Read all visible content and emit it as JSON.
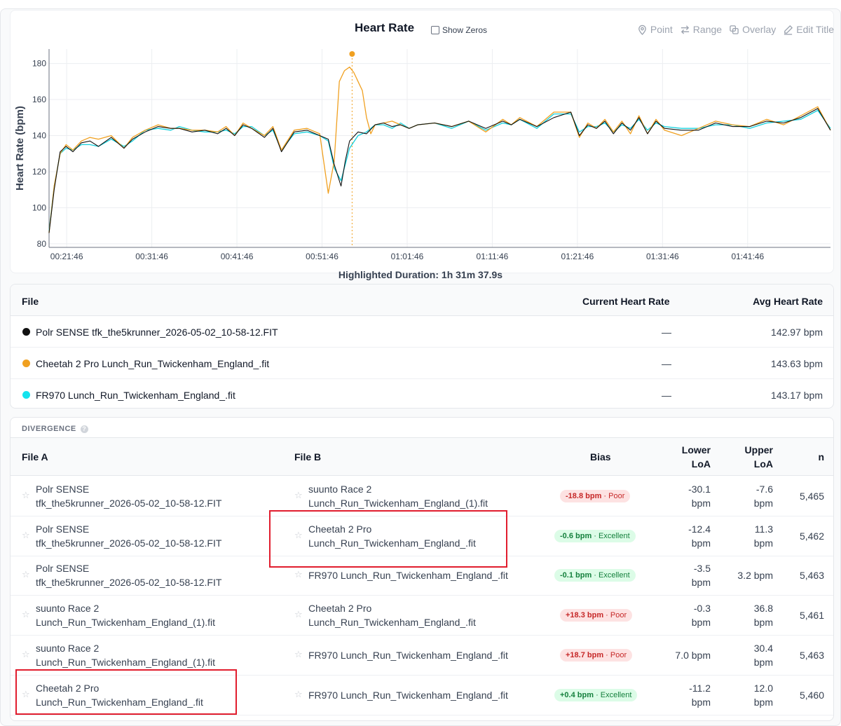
{
  "chart": {
    "title": "Heart Rate",
    "show_zeros_label": "Show Zeros",
    "toolbar": [
      {
        "label": "Point",
        "icon": "pin-icon"
      },
      {
        "label": "Range",
        "icon": "arrows-icon"
      },
      {
        "label": "Overlay",
        "icon": "overlay-icon"
      },
      {
        "label": "Edit Title",
        "icon": "edit-icon"
      }
    ],
    "highlighted_duration": "Highlighted Duration: 1h 31m 37.9s"
  },
  "chart_data": {
    "type": "line",
    "ylabel": "Heart Rate (bpm)",
    "xlabel": "",
    "ylim": [
      78,
      188
    ],
    "yticks": [
      80,
      100,
      120,
      140,
      160,
      180
    ],
    "x_tick_labels": [
      "00:21:46",
      "00:31:46",
      "00:41:46",
      "00:51:46",
      "01:01:46",
      "01:11:46",
      "01:21:46",
      "01:31:46",
      "01:41:46"
    ],
    "x_tick_minutes": [
      21.77,
      31.77,
      41.77,
      51.77,
      61.77,
      71.77,
      81.77,
      91.77,
      101.77
    ],
    "xlim_minutes": [
      19.7,
      111.5
    ],
    "cursor_minute": 55.3,
    "grid": true,
    "series": [
      {
        "name": "Polr SENSE",
        "color": "#111111",
        "x": [
          19.7,
          20.3,
          21,
          21.7,
          22.5,
          23.5,
          24.5,
          25.5,
          27,
          28.5,
          29.5,
          31,
          32.5,
          34,
          35,
          36.5,
          38,
          39.5,
          40.5,
          41.5,
          42.5,
          43.5,
          45,
          46,
          47,
          48.5,
          50,
          51.5,
          52.5,
          53.2,
          54,
          54.5,
          55,
          56,
          57,
          58,
          59,
          60,
          61,
          62,
          63,
          65,
          67,
          69,
          71,
          73,
          74,
          75,
          77,
          79,
          81,
          82,
          83,
          84,
          85,
          86,
          87,
          88,
          89,
          90,
          91,
          92,
          94,
          96,
          98,
          100,
          102,
          104,
          106,
          108,
          110,
          111.5
        ],
        "y": [
          86,
          110,
          131,
          134,
          131,
          136,
          137,
          134,
          139,
          133,
          138,
          142,
          145,
          144,
          144,
          142,
          143,
          141,
          144,
          140,
          146,
          144,
          139,
          144,
          131,
          142,
          143,
          140,
          138,
          124,
          112,
          126,
          137,
          142,
          141,
          146,
          147,
          145,
          146,
          144,
          146,
          147,
          145,
          148,
          144,
          148,
          146,
          149,
          145,
          150,
          153,
          140,
          146,
          144,
          148,
          141,
          147,
          143,
          150,
          141,
          148,
          144,
          143,
          143,
          147,
          145,
          145,
          148,
          147,
          150,
          155,
          143
        ]
      },
      {
        "name": "Cheetah 2 Pro",
        "color": "#f0a020",
        "x": [
          19.7,
          20.3,
          21,
          21.7,
          22.5,
          23.5,
          24.5,
          25.5,
          27,
          28.5,
          29.5,
          31,
          32.5,
          34,
          35,
          36.5,
          38,
          39.5,
          40.5,
          41.5,
          42.5,
          43.5,
          45,
          46,
          47,
          48.5,
          50,
          51.5,
          52.5,
          53.2,
          53.8,
          54.4,
          55,
          55.5,
          56,
          56.5,
          57,
          57.5,
          58,
          59,
          60,
          61,
          62,
          63,
          65,
          67,
          69,
          71,
          73,
          74,
          75,
          77,
          79,
          81,
          82,
          83,
          84,
          85,
          86,
          87,
          88,
          89,
          90,
          91,
          92,
          94,
          96,
          98,
          100,
          102,
          104,
          106,
          108,
          110,
          111.5
        ],
        "y": [
          86,
          112,
          130,
          135,
          132,
          137,
          139,
          138,
          140,
          133,
          139,
          143,
          146,
          144,
          144,
          143,
          143,
          142,
          145,
          140,
          147,
          144,
          140,
          145,
          132,
          143,
          144,
          141,
          108,
          126,
          170,
          176,
          178,
          175,
          170,
          165,
          150,
          141,
          146,
          147,
          148,
          146,
          144,
          146,
          147,
          145,
          148,
          142,
          149,
          146,
          150,
          145,
          153,
          153,
          139,
          147,
          144,
          149,
          142,
          148,
          141,
          151,
          141,
          149,
          143,
          140,
          144,
          148,
          146,
          145,
          149,
          146,
          151,
          156,
          143
        ]
      },
      {
        "name": "FR970",
        "color": "#15d0dd",
        "x": [
          19.7,
          20.3,
          21,
          21.7,
          22.5,
          23.5,
          24.5,
          25.5,
          27,
          28.5,
          29.5,
          31,
          32.5,
          34,
          35,
          36.5,
          38,
          39.5,
          40.5,
          41.5,
          42.5,
          43.5,
          45,
          46,
          47,
          48.5,
          50,
          51.5,
          52.5,
          53.2,
          54,
          55,
          56,
          57,
          58,
          59,
          60,
          61,
          62,
          63,
          65,
          67,
          69,
          71,
          73,
          74,
          75,
          77,
          79,
          81,
          82,
          83,
          84,
          85,
          86,
          87,
          88,
          89,
          90,
          91,
          92,
          94,
          96,
          98,
          100,
          102,
          104,
          106,
          108,
          110,
          111.5
        ],
        "y": [
          87,
          112,
          130,
          133,
          132,
          135,
          135,
          134,
          138,
          134,
          137,
          143,
          144,
          143,
          145,
          143,
          142,
          142,
          143,
          141,
          145,
          145,
          140,
          143,
          132,
          141,
          142,
          140,
          137,
          122,
          115,
          133,
          140,
          142,
          146,
          146,
          144,
          147,
          144,
          146,
          147,
          144,
          148,
          143,
          147,
          146,
          149,
          144,
          152,
          152,
          142,
          145,
          145,
          147,
          142,
          146,
          144,
          149,
          143,
          147,
          145,
          144,
          144,
          146,
          146,
          144,
          147,
          148,
          149,
          154,
          144
        ]
      }
    ]
  },
  "files": {
    "headers": {
      "file": "File",
      "current": "Current Heart Rate",
      "avg": "Avg Heart Rate"
    },
    "rows": [
      {
        "color": "#111111",
        "name": "Polr SENSE tfk_the5krunner_2026-05-02_10-58-12.FIT",
        "current": "—",
        "avg": "142.97 bpm"
      },
      {
        "color": "#f0a020",
        "name": "Cheetah 2 Pro Lunch_Run_Twickenham_England_.fit",
        "current": "—",
        "avg": "143.63 bpm"
      },
      {
        "color": "#15e3ee",
        "name": "FR970 Lunch_Run_Twickenham_England_.fit",
        "current": "—",
        "avg": "143.17 bpm"
      }
    ]
  },
  "divergence": {
    "label": "DIVERGENCE",
    "headers": {
      "a": "File A",
      "b": "File B",
      "bias": "Bias",
      "lower1": "Lower",
      "lower2": "LoA",
      "upper1": "Upper",
      "upper2": "LoA",
      "n": "n"
    },
    "rows": [
      {
        "a1": "Polr SENSE",
        "a2": "tfk_the5krunner_2026-05-02_10-58-12.FIT",
        "b1": "suunto Race 2",
        "b2": "Lunch_Run_Twickenham_England_(1).fit",
        "bias": "-18.8 bpm",
        "quality": "· Poor",
        "kind": "poor",
        "lo1": "-30.1",
        "lo2": "bpm",
        "up1": "-7.6",
        "up2": "bpm",
        "n": "5,465"
      },
      {
        "a1": "Polr SENSE",
        "a2": "tfk_the5krunner_2026-05-02_10-58-12.FIT",
        "b1": "Cheetah 2 Pro",
        "b2": "Lunch_Run_Twickenham_England_.fit",
        "bias": "-0.6 bpm",
        "quality": "· Excellent",
        "kind": "excellent",
        "lo1": "-12.4",
        "lo2": "bpm",
        "up1": "11.3",
        "up2": "bpm",
        "n": "5,462"
      },
      {
        "a1": "Polr SENSE",
        "a2": "tfk_the5krunner_2026-05-02_10-58-12.FIT",
        "b1": "FR970 Lunch_Run_Twickenham_England_.fit",
        "b2": "",
        "bias": "-0.1 bpm",
        "quality": "· Excellent",
        "kind": "excellent",
        "lo1": "-3.5",
        "lo2": "bpm",
        "up1": "3.2 bpm",
        "up2": "",
        "n": "5,463"
      },
      {
        "a1": "suunto Race 2",
        "a2": "Lunch_Run_Twickenham_England_(1).fit",
        "b1": "Cheetah 2 Pro",
        "b2": "Lunch_Run_Twickenham_England_.fit",
        "bias": "+18.3 bpm",
        "quality": "· Poor",
        "kind": "poor",
        "lo1": "-0.3",
        "lo2": "bpm",
        "up1": "36.8",
        "up2": "bpm",
        "n": "5,461"
      },
      {
        "a1": "suunto Race 2",
        "a2": "Lunch_Run_Twickenham_England_(1).fit",
        "b1": "FR970 Lunch_Run_Twickenham_England_.fit",
        "b2": "",
        "bias": "+18.7 bpm",
        "quality": "· Poor",
        "kind": "poor",
        "lo1": "7.0 bpm",
        "lo2": "",
        "up1": "30.4",
        "up2": "bpm",
        "n": "5,463"
      },
      {
        "a1": "Cheetah 2 Pro",
        "a2": "Lunch_Run_Twickenham_England_.fit",
        "b1": "FR970 Lunch_Run_Twickenham_England_.fit",
        "b2": "",
        "bias": "+0.4 bpm",
        "quality": "· Excellent",
        "kind": "excellent",
        "lo1": "-11.2",
        "lo2": "bpm",
        "up1": "12.0",
        "up2": "bpm",
        "n": "5,460"
      }
    ]
  }
}
